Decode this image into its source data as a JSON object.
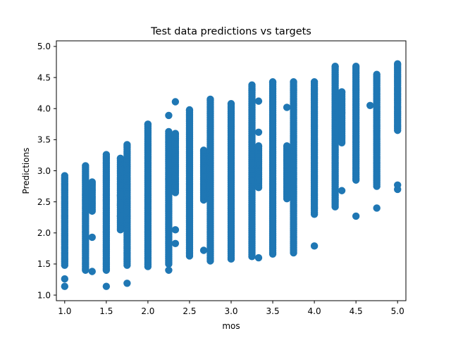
{
  "chart_data": {
    "type": "scatter",
    "title": "Test data predictions vs targets",
    "xlabel": "mos",
    "ylabel": "Predictions",
    "xlim": [
      0.9,
      5.1
    ],
    "ylim": [
      0.91,
      5.09
    ],
    "xticks": [
      "1.0",
      "1.5",
      "2.0",
      "2.5",
      "3.0",
      "3.5",
      "4.0",
      "4.5",
      "5.0"
    ],
    "yticks": [
      "1.0",
      "1.5",
      "2.0",
      "2.5",
      "3.0",
      "3.5",
      "4.0",
      "4.5",
      "5.0"
    ],
    "grid": false,
    "legend": "none",
    "marker_color": "#1f77b4",
    "series": [
      {
        "columns": [
          {
            "x": 1.0,
            "ymin": 1.48,
            "ymax": 2.92,
            "outliers": [
              1.14,
              1.26
            ]
          },
          {
            "x": 1.25,
            "ymin": 1.4,
            "ymax": 3.08,
            "outliers": []
          },
          {
            "x": 1.33,
            "ymin": 2.35,
            "ymax": 2.82,
            "outliers": [
              1.38,
              1.93
            ]
          },
          {
            "x": 1.5,
            "ymin": 1.4,
            "ymax": 3.26,
            "outliers": [
              1.14
            ]
          },
          {
            "x": 1.67,
            "ymin": 2.05,
            "ymax": 3.2,
            "outliers": [
              2.27,
              2.45,
              2.6
            ]
          },
          {
            "x": 1.75,
            "ymin": 1.48,
            "ymax": 3.42,
            "outliers": [
              1.19
            ]
          },
          {
            "x": 2.0,
            "ymin": 1.46,
            "ymax": 3.75,
            "outliers": []
          },
          {
            "x": 2.25,
            "ymin": 1.5,
            "ymax": 3.63,
            "outliers": [
              1.4,
              3.89
            ]
          },
          {
            "x": 2.33,
            "ymin": 2.65,
            "ymax": 3.6,
            "outliers": [
              1.83,
              2.05,
              4.11
            ]
          },
          {
            "x": 2.5,
            "ymin": 1.63,
            "ymax": 3.98,
            "outliers": []
          },
          {
            "x": 2.67,
            "ymin": 2.53,
            "ymax": 3.33,
            "outliers": [
              1.72
            ]
          },
          {
            "x": 2.75,
            "ymin": 1.55,
            "ymax": 4.15,
            "outliers": []
          },
          {
            "x": 3.0,
            "ymin": 1.58,
            "ymax": 4.08,
            "outliers": []
          },
          {
            "x": 3.25,
            "ymin": 1.62,
            "ymax": 4.38,
            "outliers": []
          },
          {
            "x": 3.33,
            "ymin": 2.73,
            "ymax": 3.4,
            "outliers": [
              1.6,
              3.62,
              4.12
            ]
          },
          {
            "x": 3.5,
            "ymin": 1.66,
            "ymax": 4.43,
            "outliers": []
          },
          {
            "x": 3.67,
            "ymin": 2.55,
            "ymax": 3.4,
            "outliers": [
              3.17,
              4.02
            ]
          },
          {
            "x": 3.75,
            "ymin": 1.68,
            "ymax": 4.43,
            "outliers": []
          },
          {
            "x": 4.0,
            "ymin": 2.3,
            "ymax": 4.43,
            "outliers": [
              1.79
            ]
          },
          {
            "x": 4.25,
            "ymin": 2.42,
            "ymax": 4.68,
            "outliers": []
          },
          {
            "x": 4.33,
            "ymin": 3.45,
            "ymax": 4.27,
            "outliers": [
              2.68,
              3.93
            ]
          },
          {
            "x": 4.5,
            "ymin": 2.85,
            "ymax": 4.68,
            "outliers": [
              2.27
            ]
          },
          {
            "x": 4.67,
            "ymin": 4.05,
            "ymax": 4.05,
            "outliers": []
          },
          {
            "x": 4.75,
            "ymin": 2.75,
            "ymax": 4.55,
            "outliers": [
              2.4
            ]
          },
          {
            "x": 5.0,
            "ymin": 3.65,
            "ymax": 4.72,
            "outliers": [
              2.7,
              2.77
            ]
          }
        ]
      }
    ]
  }
}
